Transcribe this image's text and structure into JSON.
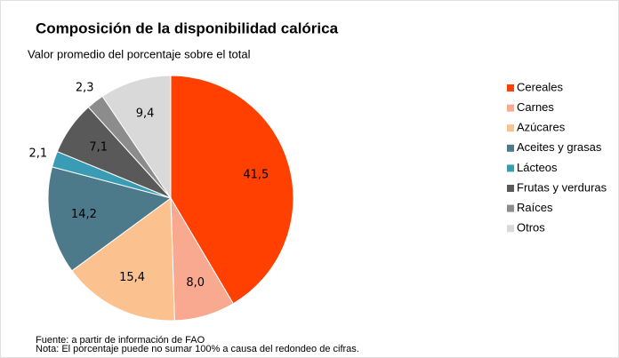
{
  "chart_data": {
    "type": "pie",
    "title": "Composición de la disponibilidad calórica",
    "subtitle": "Valor promedio del porcentaje sobre el total",
    "categories": [
      "Cereales",
      "Carnes",
      "Azúcares",
      "Aceites y grasas",
      "Lácteos",
      "Frutas y verduras",
      "Raíces",
      "Otros"
    ],
    "values": [
      41.5,
      8.0,
      15.4,
      14.2,
      2.1,
      7.1,
      2.3,
      9.4
    ],
    "value_labels": [
      "41,5",
      "8,0",
      "15,4",
      "14,2",
      "2,1",
      "7,1",
      "2,3",
      "9,4"
    ],
    "colors": [
      "#ff4000",
      "#f9a98f",
      "#fbc18e",
      "#4d7a8b",
      "#3a9bb5",
      "#595959",
      "#8c8c8c",
      "#d9d9d9"
    ],
    "legend": "right",
    "notes": [
      "Fuente: a partir de información de FAO",
      "Nota: El porcentaje puede no sumar 100% a causa del redondeo de cifras."
    ]
  }
}
